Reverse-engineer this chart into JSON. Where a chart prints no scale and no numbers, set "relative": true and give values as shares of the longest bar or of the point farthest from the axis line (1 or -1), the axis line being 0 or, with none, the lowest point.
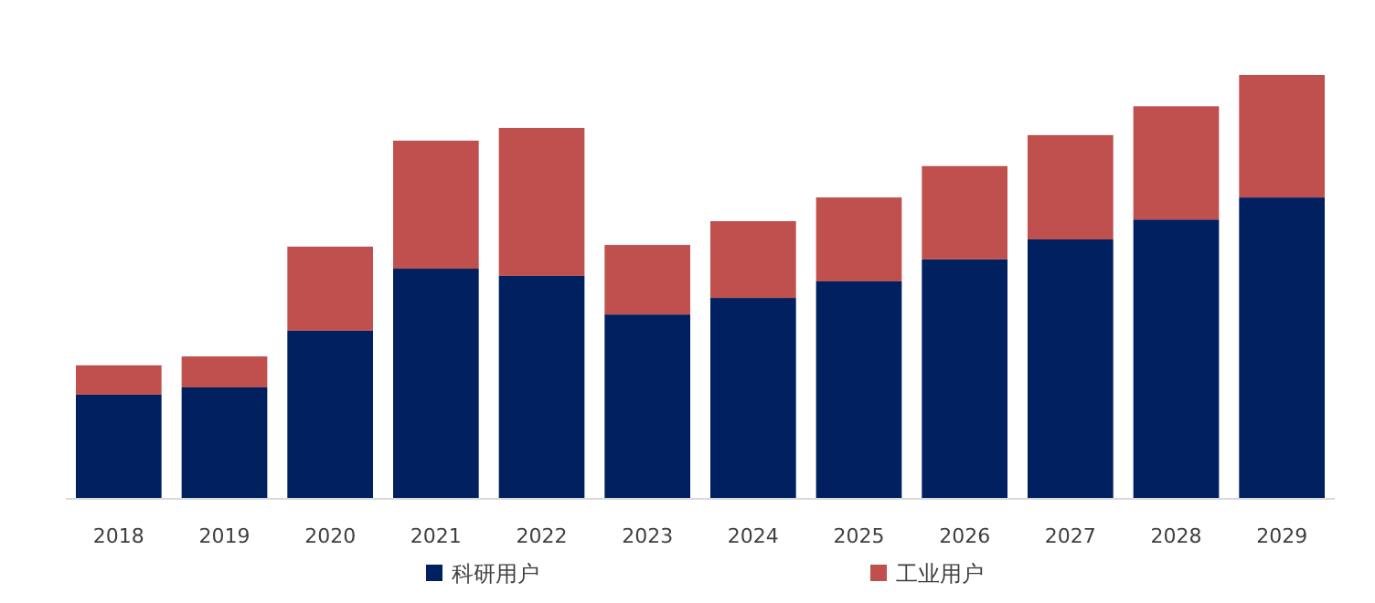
{
  "chart_data": {
    "type": "bar",
    "stacked": true,
    "relative": true,
    "legend": "bottom",
    "categories": [
      "2018",
      "2019",
      "2020",
      "2021",
      "2022",
      "2023",
      "2024",
      "2025",
      "2026",
      "2027",
      "2028",
      "2029"
    ],
    "series": [
      {
        "name": "科研用户",
        "color": "#002060",
        "values": [
          0.246,
          0.263,
          0.397,
          0.543,
          0.526,
          0.435,
          0.474,
          0.513,
          0.565,
          0.612,
          0.659,
          0.711
        ]
      },
      {
        "name": "工业用户",
        "color": "#c0504d",
        "values": [
          0.069,
          0.073,
          0.198,
          0.302,
          0.349,
          0.164,
          0.181,
          0.198,
          0.22,
          0.246,
          0.267,
          0.289
        ]
      }
    ]
  }
}
